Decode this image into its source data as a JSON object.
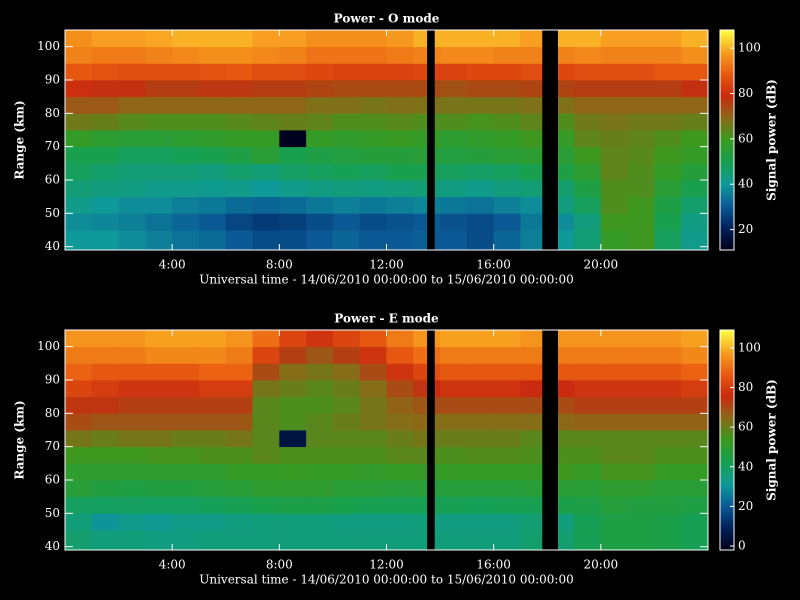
{
  "chart_data": [
    {
      "type": "heatmap",
      "title": "Power - O mode",
      "xlabel": "Universal time - 14/06/2010 00:00:00 to 15/06/2010 00:00:00",
      "ylabel": "Range (km)",
      "colorbar_label": "Signal power (dB)",
      "xlim": [
        0,
        24
      ],
      "ylim": [
        39,
        105
      ],
      "zlim": [
        11,
        108
      ],
      "xticks": [
        {
          "value": 4,
          "label": "4:00"
        },
        {
          "value": 8,
          "label": "8:00"
        },
        {
          "value": 12,
          "label": "12:00"
        },
        {
          "value": 16,
          "label": "16:00"
        },
        {
          "value": 20,
          "label": "20:00"
        }
      ],
      "yticks": [
        40,
        50,
        60,
        70,
        80,
        90,
        100
      ],
      "zticks": [
        20,
        40,
        60,
        80,
        100
      ],
      "colormap": [
        "#000018",
        "#00205a",
        "#0a5a96",
        "#0f9a98",
        "#17a050",
        "#3a9a20",
        "#8a6a18",
        "#c82a10",
        "#e85a10",
        "#f8a020",
        "#ffff40"
      ],
      "x": [
        0,
        1,
        2,
        3,
        4,
        5,
        6,
        7,
        8,
        9,
        10,
        11,
        12,
        13,
        13.5,
        13.8,
        14,
        15,
        16,
        17,
        17.8,
        18.4,
        19,
        20,
        21,
        22,
        23,
        24
      ],
      "y": [
        39,
        45,
        50,
        55,
        60,
        65,
        70,
        75,
        80,
        85,
        90,
        95,
        100,
        105
      ],
      "z": [
        [
          40,
          40,
          38,
          36,
          34,
          33,
          30,
          28,
          28,
          30,
          32,
          30,
          30,
          31,
          null,
          30,
          30,
          28,
          32,
          36,
          null,
          40,
          45,
          58,
          60,
          48,
          42
        ],
        [
          38,
          37,
          36,
          34,
          32,
          30,
          27,
          25,
          26,
          28,
          30,
          28,
          29,
          30,
          null,
          31,
          29,
          28,
          30,
          35,
          null,
          38,
          44,
          60,
          60,
          50,
          43
        ],
        [
          42,
          40,
          38,
          38,
          36,
          35,
          33,
          32,
          33,
          35,
          36,
          35,
          36,
          37,
          null,
          36,
          35,
          34,
          36,
          38,
          null,
          44,
          48,
          62,
          60,
          52,
          46
        ],
        [
          45,
          44,
          43,
          42,
          42,
          41,
          42,
          40,
          42,
          43,
          44,
          43,
          44,
          45,
          null,
          44,
          43,
          42,
          44,
          45,
          null,
          46,
          52,
          62,
          62,
          55,
          50
        ],
        [
          48,
          46,
          45,
          45,
          45,
          44,
          46,
          45,
          47,
          48,
          49,
          48,
          50,
          50,
          null,
          49,
          48,
          47,
          48,
          50,
          null,
          52,
          56,
          64,
          62,
          58,
          54
        ],
        [
          50,
          50,
          48,
          48,
          49,
          50,
          52,
          55,
          50,
          52,
          53,
          54,
          54,
          55,
          null,
          54,
          53,
          54,
          55,
          56,
          null,
          55,
          60,
          64,
          63,
          60,
          58
        ],
        [
          58,
          56,
          55,
          55,
          56,
          57,
          58,
          58,
          12,
          58,
          57,
          58,
          59,
          58,
          null,
          58,
          56,
          57,
          58,
          60,
          null,
          58,
          64,
          65,
          64,
          62,
          60
        ],
        [
          66,
          65,
          63,
          62,
          62,
          62,
          63,
          64,
          65,
          64,
          62,
          62,
          63,
          62,
          null,
          62,
          62,
          61,
          62,
          64,
          null,
          62,
          66,
          67,
          66,
          66,
          65
        ],
        [
          72,
          72,
          70,
          70,
          70,
          70,
          70,
          70,
          70,
          68,
          68,
          67,
          68,
          68,
          null,
          68,
          67,
          67,
          67,
          68,
          null,
          68,
          70,
          70,
          70,
          70,
          70
        ],
        [
          80,
          78,
          78,
          76,
          76,
          77,
          77,
          76,
          76,
          75,
          74,
          74,
          74,
          74,
          null,
          74,
          73,
          74,
          74,
          75,
          null,
          75,
          76,
          76,
          76,
          76,
          78
        ],
        [
          88,
          87,
          86,
          86,
          86,
          87,
          88,
          86,
          86,
          85,
          84,
          84,
          84,
          85,
          null,
          84,
          84,
          85,
          85,
          86,
          null,
          85,
          86,
          86,
          86,
          88,
          88
        ],
        [
          94,
          93,
          93,
          94,
          95,
          96,
          96,
          95,
          94,
          92,
          92,
          92,
          93,
          94,
          null,
          94,
          95,
          95,
          94,
          94,
          null,
          94,
          95,
          94,
          94,
          94,
          96
        ],
        [
          96,
          98,
          98,
          99,
          100,
          100,
          100,
          98,
          98,
          96,
          96,
          96,
          97,
          100,
          null,
          100,
          100,
          100,
          100,
          98,
          null,
          100,
          100,
          98,
          98,
          98,
          100
        ]
      ]
    },
    {
      "type": "heatmap",
      "title": "Power - E mode",
      "xlabel": "Universal time - 14/06/2010 00:00:00 to 15/06/2010 00:00:00",
      "ylabel": "Range (km)",
      "colorbar_label": "Signal power (dB)",
      "xlim": [
        0,
        24
      ],
      "ylim": [
        39,
        105
      ],
      "zlim": [
        -2,
        109
      ],
      "xticks": [
        {
          "value": 4,
          "label": "4:00"
        },
        {
          "value": 8,
          "label": "8:00"
        },
        {
          "value": 12,
          "label": "12:00"
        },
        {
          "value": 16,
          "label": "16:00"
        },
        {
          "value": 20,
          "label": "20:00"
        }
      ],
      "yticks": [
        40,
        50,
        60,
        70,
        80,
        90,
        100
      ],
      "zticks": [
        0,
        20,
        40,
        60,
        80,
        100
      ],
      "colormap": [
        "#000018",
        "#00205a",
        "#0a5a96",
        "#0f9a98",
        "#17a050",
        "#3a9a20",
        "#8a6a18",
        "#c82a10",
        "#e85a10",
        "#f8a020",
        "#ffff40"
      ],
      "x": [
        0,
        1,
        2,
        3,
        4,
        5,
        6,
        7,
        8,
        9,
        10,
        11,
        12,
        13,
        13.5,
        13.8,
        14,
        15,
        16,
        17,
        17.8,
        18.4,
        19,
        20,
        21,
        22,
        23,
        24
      ],
      "y": [
        39,
        45,
        50,
        55,
        60,
        65,
        70,
        75,
        80,
        85,
        90,
        95,
        100,
        105
      ],
      "z": [
        [
          38,
          36,
          36,
          35,
          35,
          36,
          36,
          36,
          36,
          36,
          36,
          36,
          36,
          36,
          null,
          36,
          36,
          36,
          36,
          38,
          null,
          38,
          42,
          45,
          45,
          44,
          42
        ],
        [
          36,
          30,
          33,
          32,
          34,
          34,
          35,
          36,
          36,
          36,
          35,
          35,
          35,
          36,
          null,
          35,
          35,
          35,
          35,
          37,
          null,
          36,
          42,
          45,
          45,
          44,
          42
        ],
        [
          40,
          40,
          40,
          40,
          40,
          41,
          42,
          43,
          44,
          44,
          43,
          42,
          42,
          42,
          null,
          42,
          42,
          41,
          42,
          42,
          null,
          44,
          45,
          47,
          46,
          46,
          45
        ],
        [
          48,
          46,
          45,
          46,
          46,
          47,
          48,
          50,
          50,
          50,
          48,
          48,
          47,
          48,
          null,
          47,
          47,
          47,
          47,
          48,
          null,
          48,
          48,
          50,
          50,
          48,
          48
        ],
        [
          50,
          50,
          50,
          50,
          50,
          50,
          52,
          52,
          53,
          52,
          52,
          51,
          52,
          52,
          null,
          52,
          52,
          52,
          52,
          52,
          null,
          54,
          52,
          55,
          55,
          52,
          52
        ],
        [
          54,
          54,
          54,
          55,
          55,
          56,
          56,
          58,
          56,
          56,
          56,
          56,
          58,
          58,
          null,
          56,
          56,
          57,
          57,
          56,
          null,
          56,
          56,
          58,
          58,
          56,
          56
        ],
        [
          62,
          60,
          62,
          62,
          60,
          60,
          62,
          58,
          5,
          58,
          58,
          58,
          60,
          62,
          null,
          60,
          60,
          60,
          60,
          58,
          null,
          58,
          58,
          58,
          58,
          58,
          58
        ],
        [
          70,
          68,
          68,
          68,
          68,
          68,
          68,
          58,
          56,
          58,
          60,
          62,
          64,
          65,
          null,
          64,
          64,
          64,
          64,
          64,
          null,
          65,
          66,
          66,
          66,
          66,
          66
        ],
        [
          74,
          74,
          72,
          72,
          72,
          72,
          72,
          58,
          56,
          56,
          58,
          62,
          66,
          68,
          null,
          70,
          70,
          70,
          70,
          70,
          null,
          70,
          72,
          72,
          72,
          72,
          72
        ],
        [
          82,
          80,
          78,
          78,
          78,
          80,
          80,
          62,
          60,
          58,
          60,
          64,
          70,
          74,
          null,
          76,
          78,
          78,
          78,
          76,
          null,
          76,
          78,
          78,
          78,
          78,
          80
        ],
        [
          88,
          86,
          86,
          86,
          86,
          88,
          88,
          70,
          64,
          62,
          64,
          70,
          78,
          82,
          null,
          84,
          86,
          86,
          86,
          86,
          null,
          86,
          86,
          86,
          86,
          86,
          88
        ],
        [
          92,
          92,
          92,
          94,
          94,
          94,
          92,
          82,
          72,
          68,
          72,
          78,
          86,
          90,
          null,
          90,
          92,
          92,
          92,
          92,
          null,
          92,
          92,
          92,
          92,
          92,
          94
        ],
        [
          96,
          96,
          96,
          98,
          98,
          98,
          96,
          90,
          82,
          78,
          82,
          86,
          92,
          96,
          null,
          96,
          98,
          98,
          98,
          96,
          null,
          96,
          96,
          96,
          96,
          96,
          98
        ]
      ]
    }
  ]
}
